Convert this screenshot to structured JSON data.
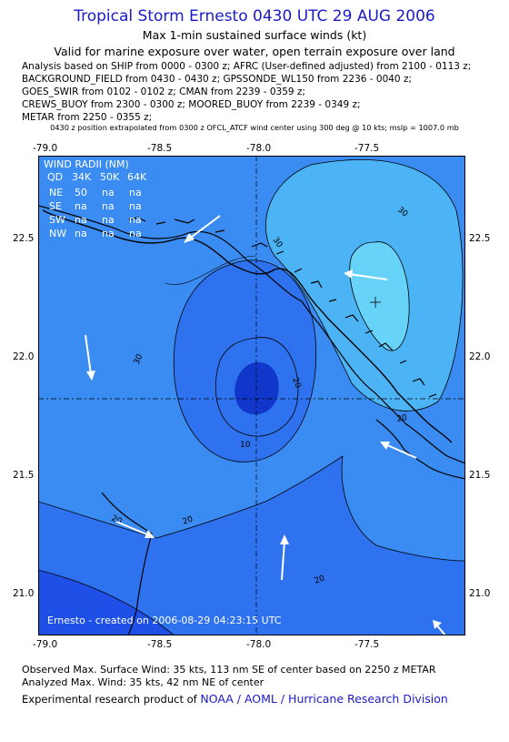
{
  "header": {
    "title": "Tropical Storm Ernesto 0430 UTC 29 AUG 2006",
    "subtitle1": "Max 1-min sustained surface winds (kt)",
    "subtitle2": "Valid for marine exposure over water, open terrain exposure over land",
    "analysis_lines": [
      "Analysis based on  SHIP from 0000 - 0300 z;  AFRC (User-defined adjusted) from 2100 - 0113 z;",
      "BACKGROUND_FIELD from 0430 - 0430 z;  GPSSONDE_WL150 from 2236 - 0040 z;",
      "GOES_SWIR from 0102 - 0102 z;  CMAN from 2239 - 0359 z;",
      "CREWS_BUOY from 2300 - 0300 z;  MOORED_BUOY from 2239 - 0349 z;",
      "METAR from 2250 - 0355 z;"
    ],
    "note": "0430 z position extrapolated from 0300 z OFCL_ATCF wind center using 300 deg @ 10 kts; mslp = 1007.0 mb"
  },
  "map": {
    "lon_ticks": [
      "-79.0",
      "-78.5",
      "-78.0",
      "-77.5"
    ],
    "lat_ticks": [
      "22.5",
      "22.0",
      "21.5",
      "21.0"
    ],
    "extent": {
      "lon_min": -79.05,
      "lon_max": -77.05,
      "lat_min": 20.82,
      "lat_max": 22.85
    },
    "center": {
      "lon": -78.0,
      "lat": 21.82
    },
    "max_wind_marker": {
      "lon": -77.5,
      "lat": 22.23
    },
    "contour_labels": [
      "30",
      "30",
      "30",
      "20",
      "20",
      "20",
      "10",
      "20",
      "20"
    ],
    "wind_radii": {
      "title": "WIND RADII (NM)",
      "header": [
        "QD",
        "34K",
        "50K",
        "64K"
      ],
      "rows": [
        [
          "NE",
          "50",
          "na",
          "na"
        ],
        [
          "SE",
          "na",
          "na",
          "na"
        ],
        [
          "SW",
          "na",
          "na",
          "na"
        ],
        [
          "NW",
          "na",
          "na",
          "na"
        ]
      ]
    },
    "credit": "Ernesto - created on 2006-08-29 04:23:15 UTC",
    "colors": {
      "level0": "#1e4fe6",
      "level10": "#2f72ef",
      "level20": "#3a8cf2",
      "level30": "#4cb4f5",
      "level34": "#67d3f8",
      "core": "#1037c9",
      "land": "#1e40d8"
    }
  },
  "footer": {
    "line1": "Observed Max. Surface Wind: 35 kts, 113 nm SE of center based on 2250 z METAR",
    "line2": "Analyzed Max. Wind: 35 kts, 42 nm NE of center",
    "line3_prefix": "Experimental research product of ",
    "line3_link": "NOAA / AOML / Hurricane Research Division"
  }
}
